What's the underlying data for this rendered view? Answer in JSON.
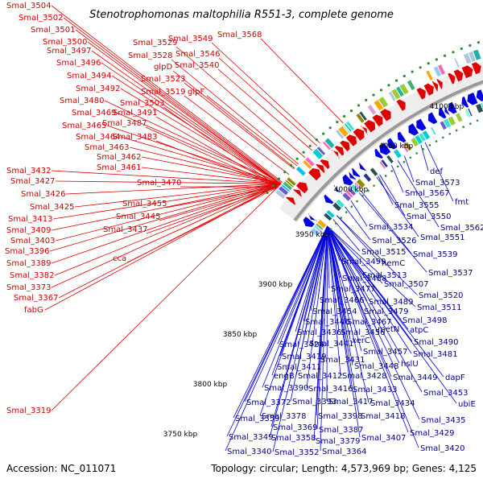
{
  "title": "Stenotrophomonas maltophilia R551-3, complete genome",
  "footer": {
    "accession": "Accession: NC_011071",
    "summary": "Topology: circular; Length: 4,573,969 bp; Genes: 4,125"
  },
  "colors": {
    "forward": "#e00000",
    "reverse": "#0000e0",
    "forward_label": "#cc0000",
    "reverse_label": "#00008b",
    "backbone": "#999999",
    "gc_dots": "#2e8b2e"
  },
  "ticks": [
    "3750 kbp",
    "3800 kbp",
    "3850 kbp",
    "3900 kbp",
    "3950 kbp",
    "4000 kbp",
    "4050 kbp",
    "4100 kbp"
  ],
  "forward_genes": [
    "Smal_3504",
    "Smal_3502",
    "Smal_3501",
    "Smal_3500",
    "Smal_3497",
    "Smal_3496",
    "Smal_3494",
    "Smal_3492",
    "Smal_3480",
    "Smal_3469",
    "Smal_3465",
    "Smal_3464",
    "Smal_3463",
    "Smal_3462",
    "Smal_3461",
    "Smal_3432",
    "Smal_3427",
    "Smal_3426",
    "Smal_3425",
    "Smal_3413",
    "Smal_3409",
    "Smal_3403",
    "Smal_3396",
    "Smal_3389",
    "Smal_3382",
    "Smal_3373",
    "Smal_3367",
    "fabG",
    "Smal_3319",
    "Smal_3529",
    "Smal_3549",
    "Smal_3568",
    "Smal_3528",
    "Smal_3546",
    "glpD",
    "Smal_3540",
    "Smal_3523",
    "Smal_3519",
    "glpF",
    "Smal_3503",
    "Smal_3491",
    "Smal_3487",
    "Smal_3483",
    "Smal_3470",
    "Smal_3455",
    "Smal_3445",
    "Smal_3437",
    "cca"
  ],
  "reverse_genes": [
    "def",
    "Smal_3573",
    "Smal_3567",
    "fmt",
    "Smal_3555",
    "Smal_3550",
    "Smal_3562",
    "Smal_3534",
    "Smal_3551",
    "Smal_3526",
    "Smal_3515",
    "Smal_3539",
    "Smal_3499",
    "hemC",
    "Smal_3513",
    "Smal_3537",
    "Smal_3488",
    "Smal_3507",
    "Smal_3477",
    "Smal_3466",
    "Smal_3520",
    "Smal_3489",
    "Smal_3511",
    "Smal_3454",
    "Smal_3479",
    "Smal_3446",
    "Smal_3467",
    "Smal_3498",
    "Smal_3436",
    "Smal_3456",
    "metN",
    "atpC",
    "Smal_3441",
    "xerC",
    "Smal_3490",
    "Smal_3424",
    "Smal_3457",
    "Smal_3481",
    "Smal_3419",
    "Smal_3431",
    "Smal_3411",
    "Smal_3448",
    "hslU",
    "engB",
    "Smal_3412",
    "Smal_3428",
    "Smal_3449",
    "dapF",
    "Smal_3390",
    "Smal_3416",
    "Smal_3433",
    "Smal_3453",
    "Smal_3372",
    "Smal_3393",
    "Smal_3417",
    "Smal_3434",
    "ubiE",
    "Smal_3378",
    "Smal_3398",
    "Smal_3418",
    "Smal_3435",
    "Smal_3359",
    "Smal_3369",
    "Smal_3387",
    "Smal_3429",
    "Smal_3349",
    "Smal_3358",
    "Smal_3379",
    "Smal_3407",
    "Smal_3340",
    "Smal_3352",
    "Smal_3364",
    "Smal_3420"
  ]
}
